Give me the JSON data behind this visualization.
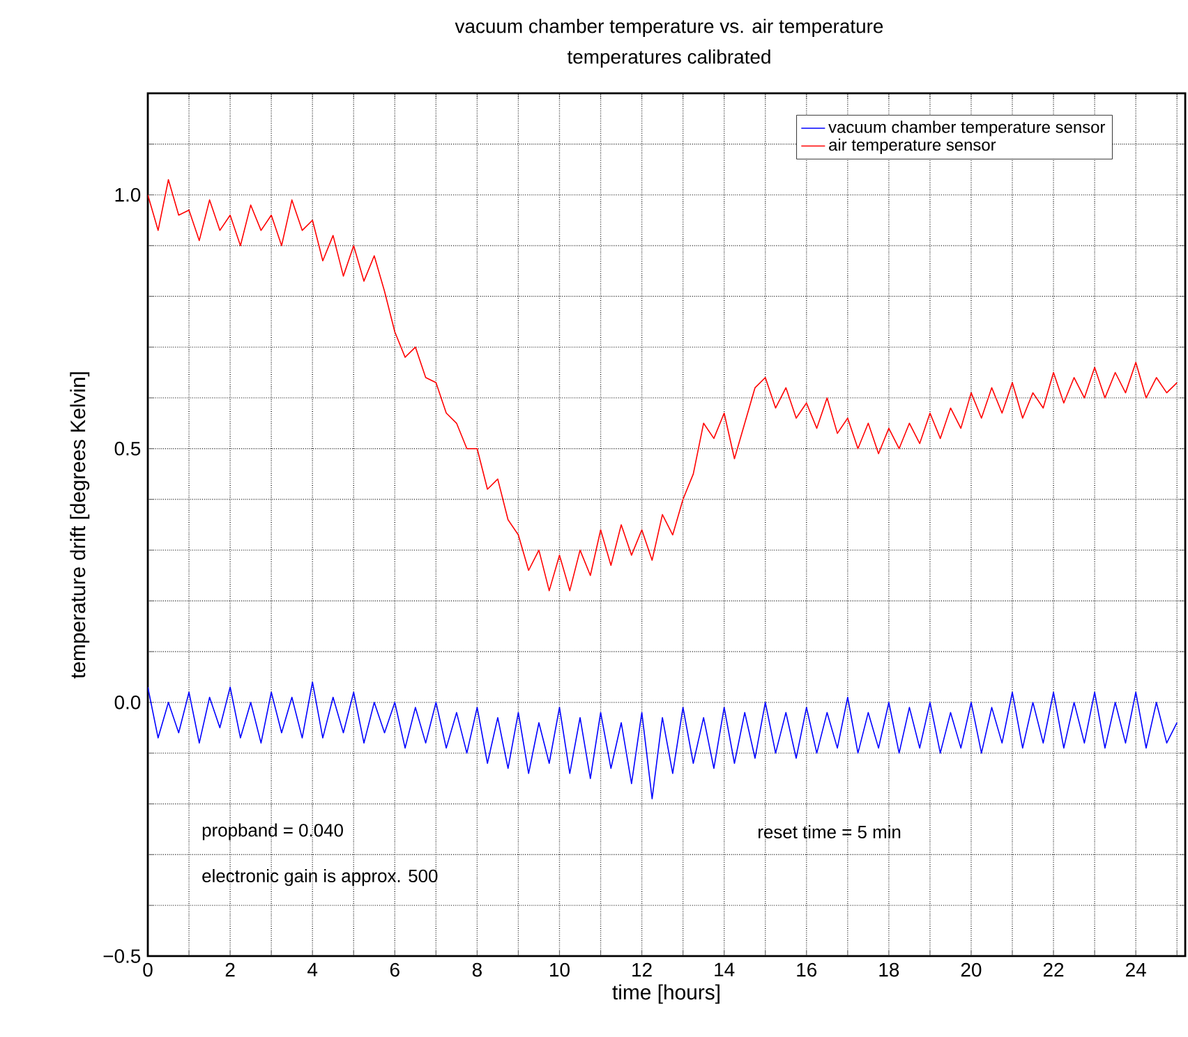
{
  "chart_data": {
    "type": "line",
    "title": "vacuum chamber temperature vs. air temperature",
    "subtitle": "temperatures calibrated",
    "xlabel": "time [hours]",
    "ylabel": "temperature drift [degrees Kelvin]",
    "x": [
      0,
      0.25,
      0.5,
      0.75,
      1,
      1.25,
      1.5,
      1.75,
      2,
      2.25,
      2.5,
      2.75,
      3,
      3.25,
      3.5,
      3.75,
      4,
      4.25,
      4.5,
      4.75,
      5,
      5.25,
      5.5,
      5.75,
      6,
      6.25,
      6.5,
      6.75,
      7,
      7.25,
      7.5,
      7.75,
      8,
      8.25,
      8.5,
      8.75,
      9,
      9.25,
      9.5,
      9.75,
      10,
      10.25,
      10.5,
      10.75,
      11,
      11.25,
      11.5,
      11.75,
      12,
      12.25,
      12.5,
      12.75,
      13,
      13.25,
      13.5,
      13.75,
      14,
      14.25,
      14.5,
      14.75,
      15,
      15.25,
      15.5,
      15.75,
      16,
      16.25,
      16.5,
      16.75,
      17,
      17.25,
      17.5,
      17.75,
      18,
      18.25,
      18.5,
      18.75,
      19,
      19.25,
      19.5,
      19.75,
      20,
      20.25,
      20.5,
      20.75,
      21,
      21.25,
      21.5,
      21.75,
      22,
      22.25,
      22.5,
      22.75,
      23,
      23.25,
      23.5,
      23.75,
      24,
      24.25,
      24.5,
      24.75,
      25
    ],
    "series": [
      {
        "name": "vacuum chamber temperature sensor",
        "color": "#0000ff",
        "values": [
          0.03,
          -0.07,
          0.0,
          -0.06,
          0.02,
          -0.08,
          0.01,
          -0.05,
          0.03,
          -0.07,
          0.0,
          -0.08,
          0.02,
          -0.06,
          0.01,
          -0.07,
          0.04,
          -0.07,
          0.01,
          -0.06,
          0.02,
          -0.08,
          0.0,
          -0.06,
          0.0,
          -0.09,
          -0.01,
          -0.08,
          0.0,
          -0.09,
          -0.02,
          -0.1,
          -0.01,
          -0.12,
          -0.03,
          -0.13,
          -0.02,
          -0.14,
          -0.04,
          -0.12,
          -0.01,
          -0.14,
          -0.03,
          -0.15,
          -0.02,
          -0.13,
          -0.04,
          -0.16,
          -0.02,
          -0.19,
          -0.03,
          -0.14,
          -0.01,
          -0.12,
          -0.03,
          -0.13,
          -0.01,
          -0.12,
          -0.02,
          -0.11,
          0.0,
          -0.1,
          -0.02,
          -0.11,
          -0.01,
          -0.1,
          -0.02,
          -0.09,
          0.01,
          -0.1,
          -0.02,
          -0.09,
          0.0,
          -0.1,
          -0.01,
          -0.09,
          0.0,
          -0.1,
          -0.02,
          -0.09,
          0.0,
          -0.1,
          -0.01,
          -0.08,
          0.02,
          -0.09,
          0.0,
          -0.08,
          0.02,
          -0.09,
          0.0,
          -0.08,
          0.02,
          -0.09,
          0.0,
          -0.08,
          0.02,
          -0.09,
          0.0,
          -0.08,
          -0.04
        ]
      },
      {
        "name": "air temperature sensor",
        "color": "#ff0000",
        "values": [
          1.0,
          0.93,
          1.03,
          0.96,
          0.97,
          0.91,
          0.99,
          0.93,
          0.96,
          0.9,
          0.98,
          0.93,
          0.96,
          0.9,
          0.99,
          0.93,
          0.95,
          0.87,
          0.92,
          0.84,
          0.9,
          0.83,
          0.88,
          0.81,
          0.73,
          0.68,
          0.7,
          0.64,
          0.63,
          0.57,
          0.55,
          0.5,
          0.5,
          0.42,
          0.44,
          0.36,
          0.33,
          0.26,
          0.3,
          0.22,
          0.29,
          0.22,
          0.3,
          0.25,
          0.34,
          0.27,
          0.35,
          0.29,
          0.34,
          0.28,
          0.37,
          0.33,
          0.4,
          0.45,
          0.55,
          0.52,
          0.57,
          0.48,
          0.55,
          0.62,
          0.64,
          0.58,
          0.62,
          0.56,
          0.59,
          0.54,
          0.6,
          0.53,
          0.56,
          0.5,
          0.55,
          0.49,
          0.54,
          0.5,
          0.55,
          0.51,
          0.57,
          0.52,
          0.58,
          0.54,
          0.61,
          0.56,
          0.62,
          0.57,
          0.63,
          0.56,
          0.61,
          0.58,
          0.65,
          0.59,
          0.64,
          0.6,
          0.66,
          0.6,
          0.65,
          0.61,
          0.67,
          0.6,
          0.64,
          0.61,
          0.63
        ]
      }
    ],
    "xlim": [
      0,
      25.2
    ],
    "ylim": [
      -0.5,
      1.2
    ],
    "xticks": [
      0,
      {
        "value": 1,
        "label": null
      },
      2,
      {
        "value": 3,
        "label": null
      },
      4,
      {
        "value": 5,
        "label": null
      },
      6,
      {
        "value": 7,
        "label": null
      },
      8,
      {
        "value": 9,
        "label": null
      },
      10,
      {
        "value": 11,
        "label": null
      },
      12,
      {
        "value": 13,
        "label": null
      },
      14,
      {
        "value": 15,
        "label": null
      },
      16,
      {
        "value": 17,
        "label": null
      },
      18,
      {
        "value": 19,
        "label": null
      },
      20,
      {
        "value": 21,
        "label": null
      },
      22,
      {
        "value": 23,
        "label": null
      },
      24,
      {
        "value": 25,
        "label": null
      }
    ],
    "yticks": [
      {
        "value": -0.5,
        "label": "−0.5"
      },
      {
        "value": -0.4,
        "label": null
      },
      {
        "value": -0.3,
        "label": null
      },
      {
        "value": -0.2,
        "label": null
      },
      {
        "value": -0.1,
        "label": null
      },
      {
        "value": 0,
        "label": "0.0"
      },
      {
        "value": 0.1,
        "label": null
      },
      {
        "value": 0.2,
        "label": null
      },
      {
        "value": 0.3,
        "label": null
      },
      {
        "value": 0.4,
        "label": null
      },
      {
        "value": 0.5,
        "label": "0.5"
      },
      {
        "value": 0.6,
        "label": null
      },
      {
        "value": 0.7,
        "label": null
      },
      {
        "value": 0.8,
        "label": null
      },
      {
        "value": 0.9,
        "label": null
      },
      {
        "value": 1,
        "label": "1.0"
      },
      {
        "value": 1.1,
        "label": null
      },
      {
        "value": 1.2,
        "label": null
      }
    ],
    "grid": true,
    "legend": "top right",
    "marker": "none",
    "line_style": "solid",
    "annotations": [
      "propband = 0.040",
      "electronic gain is approx. 500",
      "reset time = 5 min"
    ]
  }
}
